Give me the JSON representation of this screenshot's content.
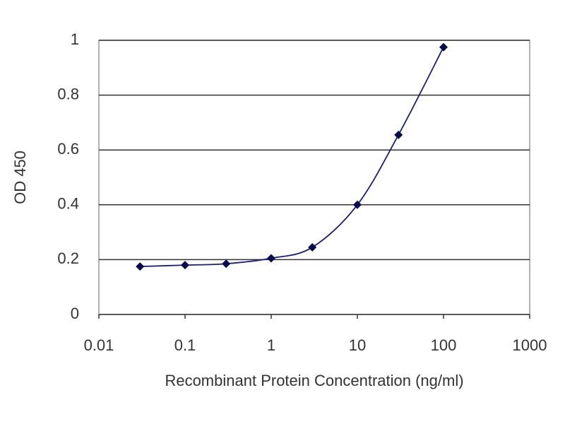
{
  "chart_data": {
    "type": "line",
    "x_label": "Recombinant Protein Concentration (ng/ml)",
    "y_label": "OD 450",
    "x": [
      0.03,
      0.1,
      0.3,
      1,
      3,
      10,
      30,
      100
    ],
    "values": [
      0.175,
      0.18,
      0.185,
      0.205,
      0.245,
      0.4,
      0.655,
      0.975
    ],
    "color": "#1c1c80",
    "marker_color": "#0a0a50",
    "x_log": true,
    "xlim": [
      0.01,
      1000
    ],
    "xticks": [
      0.01,
      0.1,
      1,
      10,
      100,
      1000
    ],
    "ylim": [
      0,
      1
    ],
    "yticks": [
      0,
      0.2,
      0.4,
      0.6,
      0.8,
      1
    ],
    "grid": true
  }
}
